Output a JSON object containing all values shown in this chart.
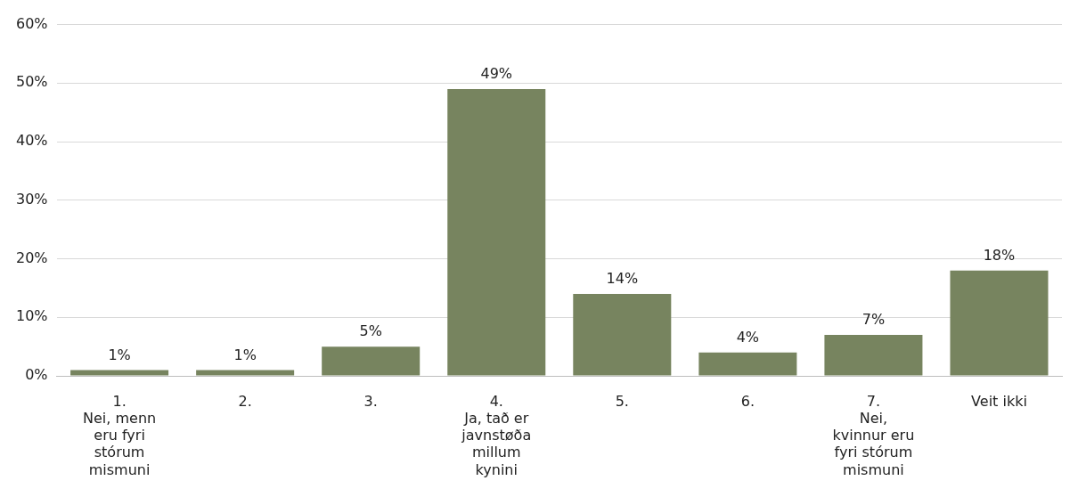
{
  "chart_data": {
    "type": "bar",
    "categories": [
      "1.\nNei, menn eru fyri stórum mismuni",
      "2.",
      "3.",
      "4.\nJa, tað er javnstøða millum kynini",
      "5.",
      "6.",
      "7.\nNei, kvinnur eru fyri stórum mismuni",
      "Veit ikki"
    ],
    "values": [
      1,
      1,
      5,
      49,
      14,
      4,
      7,
      18
    ],
    "value_labels": [
      "1%",
      "1%",
      "5%",
      "49%",
      "14%",
      "4%",
      "7%",
      "18%"
    ],
    "color": "#77845f",
    "ylim": [
      0,
      60
    ],
    "yticks": [
      {
        "value": 0,
        "label": "0%"
      },
      {
        "value": 10,
        "label": "10%"
      },
      {
        "value": 20,
        "label": "20%"
      },
      {
        "value": 30,
        "label": "30%"
      },
      {
        "value": 40,
        "label": "40%"
      },
      {
        "value": 50,
        "label": "50%"
      },
      {
        "value": 60,
        "label": "60%"
      }
    ],
    "grid": "y",
    "legend": false
  }
}
